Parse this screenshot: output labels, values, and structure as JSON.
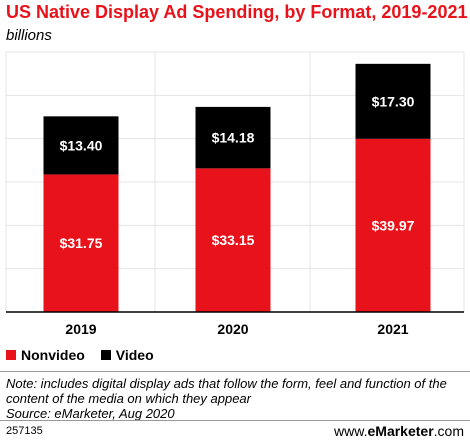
{
  "chart_data": {
    "type": "bar",
    "stacked": true,
    "title": "US Native Display Ad Spending, by Format, 2019-2021",
    "subtitle": "billions",
    "categories": [
      "2019",
      "2020",
      "2021"
    ],
    "series": [
      {
        "name": "Nonvideo",
        "color": "#e8121a",
        "values": [
          31.75,
          33.15,
          39.97
        ],
        "labels": [
          "$31.75",
          "$33.15",
          "$39.97"
        ]
      },
      {
        "name": "Video",
        "color": "#000000",
        "values": [
          13.4,
          14.18,
          17.3
        ],
        "labels": [
          "$13.40",
          "$14.18",
          "$17.30"
        ]
      }
    ],
    "ylim": [
      0,
      60
    ],
    "grid": true,
    "legend_placement": "bottom-left"
  },
  "notes": {
    "note": "Note: includes digital display ads that follow the form, feel and function of the content of the media on which they appear",
    "source": "Source: eMarketer, Aug 2020"
  },
  "footer": {
    "chart_id": "257135",
    "brand_prefix": "www.",
    "brand_name": "eMarketer",
    "brand_suffix": ".com"
  }
}
